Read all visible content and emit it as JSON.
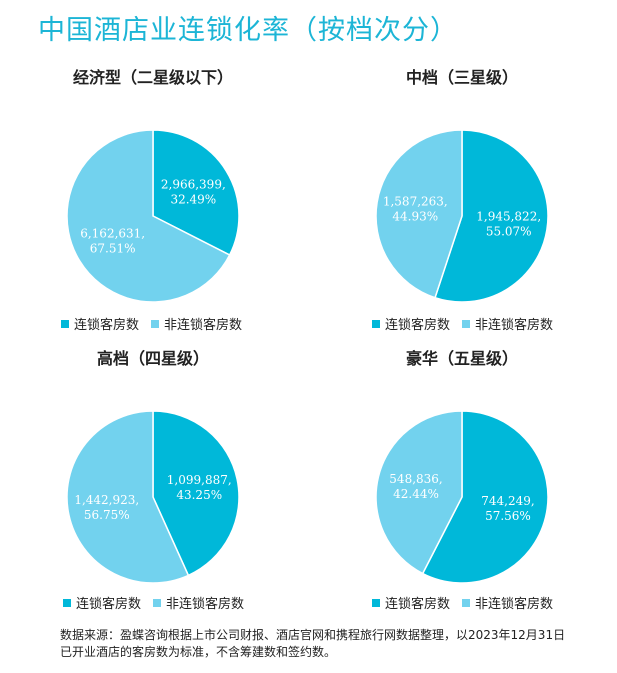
{
  "title": "中国酒店业连锁化率（按档次分）",
  "colors": {
    "chain": "#00b8d9",
    "nonchain": "#72d2ee",
    "title": "#1cb5d6"
  },
  "legend": {
    "chain": "连锁客房数",
    "nonchain": "非连锁客房数"
  },
  "chart_data": [
    {
      "type": "pie",
      "title": "经济型（二星级以下）",
      "slices": [
        {
          "name": "连锁客房数",
          "value": 2966399,
          "value_label": "2,966,399,",
          "percent_label": "32.49%",
          "percent": 32.49
        },
        {
          "name": "非连锁客房数",
          "value": 6162631,
          "value_label": "6,162,631,",
          "percent_label": "67.51%",
          "percent": 67.51
        }
      ]
    },
    {
      "type": "pie",
      "title": "中档（三星级）",
      "slices": [
        {
          "name": "连锁客房数",
          "value": 1945822,
          "value_label": "1,945,822,",
          "percent_label": "55.07%",
          "percent": 55.07
        },
        {
          "name": "非连锁客房数",
          "value": 1587263,
          "value_label": "1,587,263,",
          "percent_label": "44.93%",
          "percent": 44.93
        }
      ]
    },
    {
      "type": "pie",
      "title": "高档（四星级）",
      "slices": [
        {
          "name": "连锁客房数",
          "value": 1099887,
          "value_label": "1,099,887,",
          "percent_label": "43.25%",
          "percent": 43.25
        },
        {
          "name": "非连锁客房数",
          "value": 1442923,
          "value_label": "1,442,923,",
          "percent_label": "56.75%",
          "percent": 56.75
        }
      ]
    },
    {
      "type": "pie",
      "title": "豪华（五星级）",
      "slices": [
        {
          "name": "连锁客房数",
          "value": 744249,
          "value_label": "744,249,",
          "percent_label": "57.56%",
          "percent": 57.56
        },
        {
          "name": "非连锁客房数",
          "value": 548836,
          "value_label": "548,836,",
          "percent_label": "42.44%",
          "percent": 42.44
        }
      ]
    }
  ],
  "footnote": {
    "line1": "数据来源：盈蝶咨询根据上市公司财报、酒店官网和携程旅行网数据整理，以2023年12月31日",
    "line2": "已开业酒店的客房数为标准，不含筹建数和签约数。"
  }
}
